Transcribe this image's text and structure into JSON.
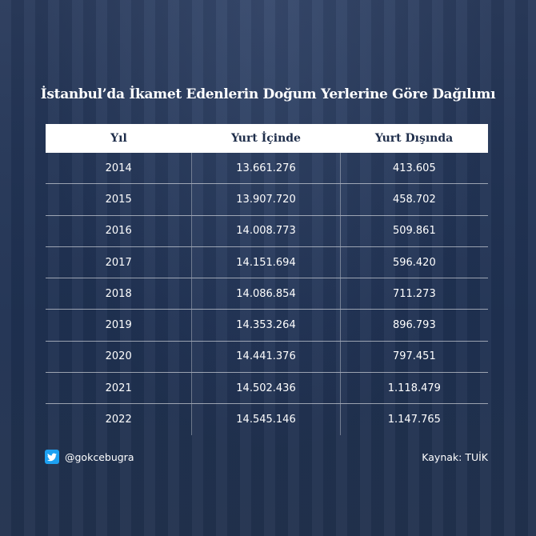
{
  "chart_data": {
    "type": "table",
    "title": "İstanbul’da İkamet Edenlerin Doğum Yerlerine Göre Dağılımı",
    "columns": [
      "Yıl",
      "Yurt İçinde",
      "Yurt Dışında"
    ],
    "rows": [
      [
        "2014",
        "13.661.276",
        "413.605"
      ],
      [
        "2015",
        "13.907.720",
        "458.702"
      ],
      [
        "2016",
        "14.008.773",
        "509.861"
      ],
      [
        "2017",
        "14.151.694",
        "596.420"
      ],
      [
        "2018",
        "14.086.854",
        "711.273"
      ],
      [
        "2019",
        "14.353.264",
        "896.793"
      ],
      [
        "2020",
        "14.441.376",
        "797.451"
      ],
      [
        "2021",
        "14.502.436",
        "1.118.479"
      ],
      [
        "2022",
        "14.545.146",
        "1.147.765"
      ]
    ]
  },
  "footer": {
    "handle": "@gokcebugra",
    "handle_icon": "twitter-icon",
    "source": "Kaynak: TUİK"
  },
  "colors": {
    "background": "#223456",
    "header_bg": "#ffffff",
    "header_text": "#1e2d4a",
    "twitter": "#1da1f2"
  }
}
